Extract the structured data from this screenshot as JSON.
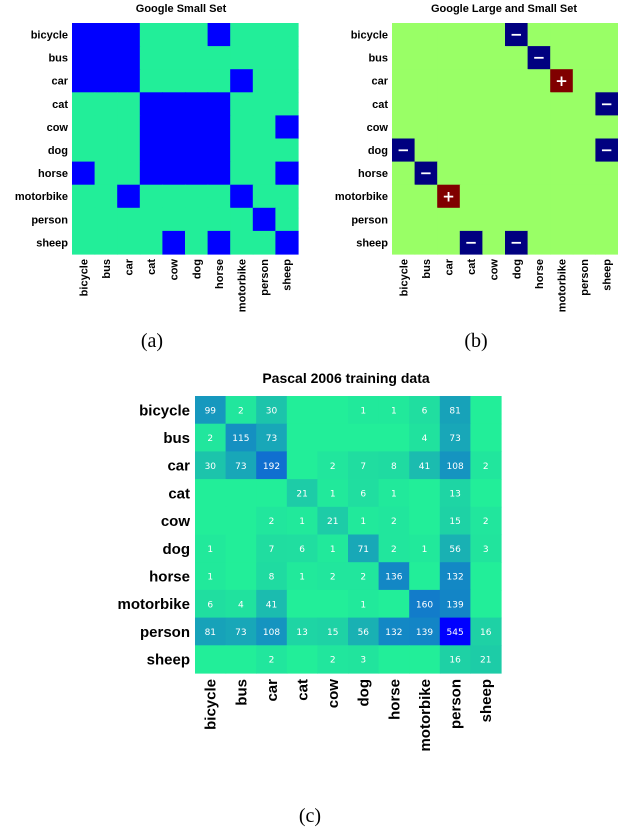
{
  "chart_data": [
    {
      "type": "heatmap",
      "title": "Google Small Set",
      "caption": "(a)",
      "categories": [
        "bicycle",
        "bus",
        "car",
        "cat",
        "cow",
        "dog",
        "horse",
        "motorbike",
        "person",
        "sheep"
      ],
      "colors": {
        "off": "#22ee99",
        "on": "#0000ff"
      },
      "values": [
        [
          1,
          1,
          1,
          0,
          0,
          0,
          1,
          0,
          0,
          0
        ],
        [
          1,
          1,
          1,
          0,
          0,
          0,
          0,
          0,
          0,
          0
        ],
        [
          1,
          1,
          1,
          0,
          0,
          0,
          0,
          1,
          0,
          0
        ],
        [
          0,
          0,
          0,
          1,
          1,
          1,
          1,
          0,
          0,
          0
        ],
        [
          0,
          0,
          0,
          1,
          1,
          1,
          1,
          0,
          0,
          1
        ],
        [
          0,
          0,
          0,
          1,
          1,
          1,
          1,
          0,
          0,
          0
        ],
        [
          1,
          0,
          0,
          1,
          1,
          1,
          1,
          0,
          0,
          1
        ],
        [
          0,
          0,
          1,
          0,
          0,
          0,
          0,
          1,
          0,
          0
        ],
        [
          0,
          0,
          0,
          0,
          0,
          0,
          0,
          0,
          1,
          0
        ],
        [
          0,
          0,
          0,
          0,
          1,
          0,
          1,
          0,
          0,
          1
        ]
      ]
    },
    {
      "type": "heatmap",
      "title": "Google Large and Small Set",
      "caption": "(b)",
      "categories": [
        "bicycle",
        "bus",
        "car",
        "cat",
        "cow",
        "dog",
        "horse",
        "motorbike",
        "person",
        "sheep"
      ],
      "colors": {
        "neutral": "#99ff66",
        "negative": "#000080",
        "positive": "#800000"
      },
      "values": [
        [
          0,
          0,
          0,
          0,
          0,
          -1,
          0,
          0,
          0,
          0
        ],
        [
          0,
          0,
          0,
          0,
          0,
          0,
          -1,
          0,
          0,
          0
        ],
        [
          0,
          0,
          0,
          0,
          0,
          0,
          0,
          1,
          0,
          0
        ],
        [
          0,
          0,
          0,
          0,
          0,
          0,
          0,
          0,
          0,
          -1
        ],
        [
          0,
          0,
          0,
          0,
          0,
          0,
          0,
          0,
          0,
          0
        ],
        [
          -1,
          0,
          0,
          0,
          0,
          0,
          0,
          0,
          0,
          -1
        ],
        [
          0,
          -1,
          0,
          0,
          0,
          0,
          0,
          0,
          0,
          0
        ],
        [
          0,
          0,
          1,
          0,
          0,
          0,
          0,
          0,
          0,
          0
        ],
        [
          0,
          0,
          0,
          0,
          0,
          0,
          0,
          0,
          0,
          0
        ],
        [
          0,
          0,
          0,
          -1,
          0,
          -1,
          0,
          0,
          0,
          0
        ]
      ],
      "signs": {
        "positive": "+",
        "negative": "−"
      }
    },
    {
      "type": "heatmap",
      "title": "Pascal 2006 training data",
      "caption": "(c)",
      "categories": [
        "bicycle",
        "bus",
        "car",
        "cat",
        "cow",
        "dog",
        "horse",
        "motorbike",
        "person",
        "sheep"
      ],
      "colors": {
        "low": "#22ee99",
        "high": "#0000ff"
      },
      "values": [
        [
          99,
          2,
          30,
          null,
          null,
          1,
          1,
          6,
          81,
          null
        ],
        [
          2,
          115,
          73,
          null,
          null,
          null,
          null,
          4,
          73,
          null
        ],
        [
          30,
          73,
          192,
          null,
          2,
          7,
          8,
          41,
          108,
          2
        ],
        [
          null,
          null,
          null,
          21,
          1,
          6,
          1,
          null,
          13,
          null
        ],
        [
          null,
          null,
          2,
          1,
          21,
          1,
          2,
          null,
          15,
          2
        ],
        [
          1,
          null,
          7,
          6,
          1,
          71,
          2,
          1,
          56,
          3
        ],
        [
          1,
          null,
          8,
          1,
          2,
          2,
          136,
          null,
          132,
          null
        ],
        [
          6,
          4,
          41,
          null,
          null,
          1,
          null,
          160,
          139,
          null
        ],
        [
          81,
          73,
          108,
          13,
          15,
          56,
          132,
          139,
          545,
          16
        ],
        [
          null,
          null,
          2,
          null,
          2,
          3,
          null,
          null,
          16,
          21
        ]
      ],
      "vmax": 545
    }
  ]
}
